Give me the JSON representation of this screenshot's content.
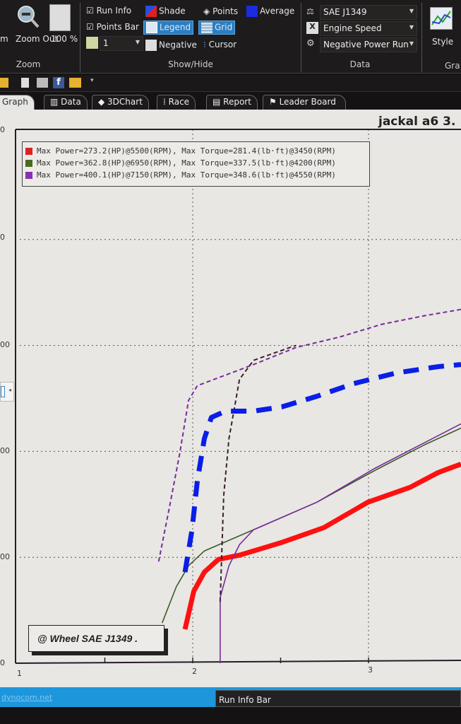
{
  "ribbon": {
    "zoom_group": {
      "label": "Zoom",
      "zoom_in_partial": "m",
      "zoom_out": "Zoom Out",
      "zoom_100": "100 %"
    },
    "showhide_group": {
      "label": "Show/Hide",
      "run_info": "Run Info",
      "points_bar": "Points Bar",
      "run_select": "1",
      "shade": "Shade",
      "legend": "Legend",
      "negative": "Negative",
      "points": "Points",
      "grid": "Grid",
      "cursor": "Cursor",
      "average": "Average"
    },
    "data_group": {
      "label": "Data",
      "standard": "SAE J1349",
      "x_axis": "Engine Speed",
      "run_type": "Negative Power Run"
    },
    "graph_group": {
      "style": "Style",
      "label_partial": "Gra"
    }
  },
  "tabs": [
    {
      "label": "Graph",
      "active": true
    },
    {
      "label": "Data"
    },
    {
      "label": "3DChart"
    },
    {
      "label": "Race"
    },
    {
      "label": "Report"
    },
    {
      "label": "Leader Board"
    }
  ],
  "graph": {
    "title_partial": "jackal a6 3.",
    "legend": [
      {
        "text": "Max Power=273.2(HP)@5500(RPM), Max Torque=281.4(lb·ft)@3450(RPM)",
        "color": "#e02020"
      },
      {
        "text": "Max Power=362.8(HP)@6950(RPM), Max Torque=337.5(lb·ft)@4200(RPM)",
        "color": "#4a6a1e"
      },
      {
        "text": "Max Power=400.1(HP)@7150(RPM), Max Torque=348.6(lb·ft)@4550(RPM)",
        "color": "#8a2fb0"
      }
    ],
    "stamp": "@ Wheel SAE J1349  .",
    "y_labels_visible": [
      "0",
      "00",
      "00",
      "00",
      "0",
      "0"
    ],
    "x_labels": [
      "1",
      "2",
      "3"
    ]
  },
  "chart_data": {
    "type": "line",
    "xlim": [
      1,
      3.51
    ],
    "ylim": [
      0,
      252
    ],
    "grid": true,
    "x_ticks": [
      1,
      2,
      3
    ],
    "y_grid": [
      50,
      100,
      150,
      200
    ],
    "series": [
      {
        "color": "#ff1010",
        "style": "solid-thick",
        "points": [
          [
            1.94,
            16
          ],
          [
            1.99,
            34
          ],
          [
            2.05,
            43
          ],
          [
            2.13,
            49
          ],
          [
            2.25,
            51
          ],
          [
            2.49,
            57
          ],
          [
            2.73,
            64
          ],
          [
            2.98,
            76
          ],
          [
            3.22,
            83
          ],
          [
            3.38,
            90
          ],
          [
            3.51,
            94
          ]
        ]
      },
      {
        "color": "#3d5a2a",
        "style": "solid-thin",
        "points": [
          [
            1.81,
            19
          ],
          [
            1.89,
            36
          ],
          [
            1.96,
            46
          ],
          [
            2.05,
            53
          ],
          [
            2.33,
            63
          ],
          [
            2.69,
            76
          ],
          [
            3.02,
            91
          ],
          [
            3.3,
            103
          ],
          [
            3.51,
            111
          ]
        ]
      },
      {
        "color": "#7a2a9a",
        "style": "solid-thin",
        "points": [
          [
            2.14,
            0
          ],
          [
            2.14,
            31
          ],
          [
            2.19,
            46
          ],
          [
            2.25,
            56
          ],
          [
            2.33,
            63
          ],
          [
            2.69,
            76
          ],
          [
            3.02,
            92
          ],
          [
            3.3,
            104
          ],
          [
            3.51,
            113
          ]
        ]
      },
      {
        "color": "#7a2a9a",
        "style": "dashed-thin",
        "points": [
          [
            1.79,
            48
          ],
          [
            1.85,
            73
          ],
          [
            1.91,
            99
          ],
          [
            1.96,
            124
          ],
          [
            2.01,
            131
          ],
          [
            2.17,
            136
          ],
          [
            2.33,
            141
          ],
          [
            2.57,
            149
          ],
          [
            2.82,
            154
          ],
          [
            3.06,
            160
          ],
          [
            3.3,
            164
          ],
          [
            3.51,
            167
          ]
        ]
      },
      {
        "color": "#3a2030",
        "style": "dashed-thin",
        "points": [
          [
            2.14,
            29
          ],
          [
            2.16,
            79
          ],
          [
            2.19,
            106
          ],
          [
            2.25,
            134
          ],
          [
            2.33,
            143
          ],
          [
            2.57,
            150
          ]
        ]
      },
      {
        "color": "#0a1ee8",
        "style": "dashed-thick",
        "points": [
          [
            1.94,
            43
          ],
          [
            1.98,
            63
          ],
          [
            2.01,
            86
          ],
          [
            2.05,
            106
          ],
          [
            2.09,
            116
          ],
          [
            2.17,
            119
          ],
          [
            2.33,
            119
          ],
          [
            2.49,
            121
          ],
          [
            2.69,
            126
          ],
          [
            2.9,
            132
          ],
          [
            3.14,
            137
          ],
          [
            3.38,
            140
          ],
          [
            3.51,
            141
          ]
        ]
      }
    ]
  },
  "status": {
    "link": "dynocom.net",
    "run_info_bar": "Run Info Bar"
  }
}
